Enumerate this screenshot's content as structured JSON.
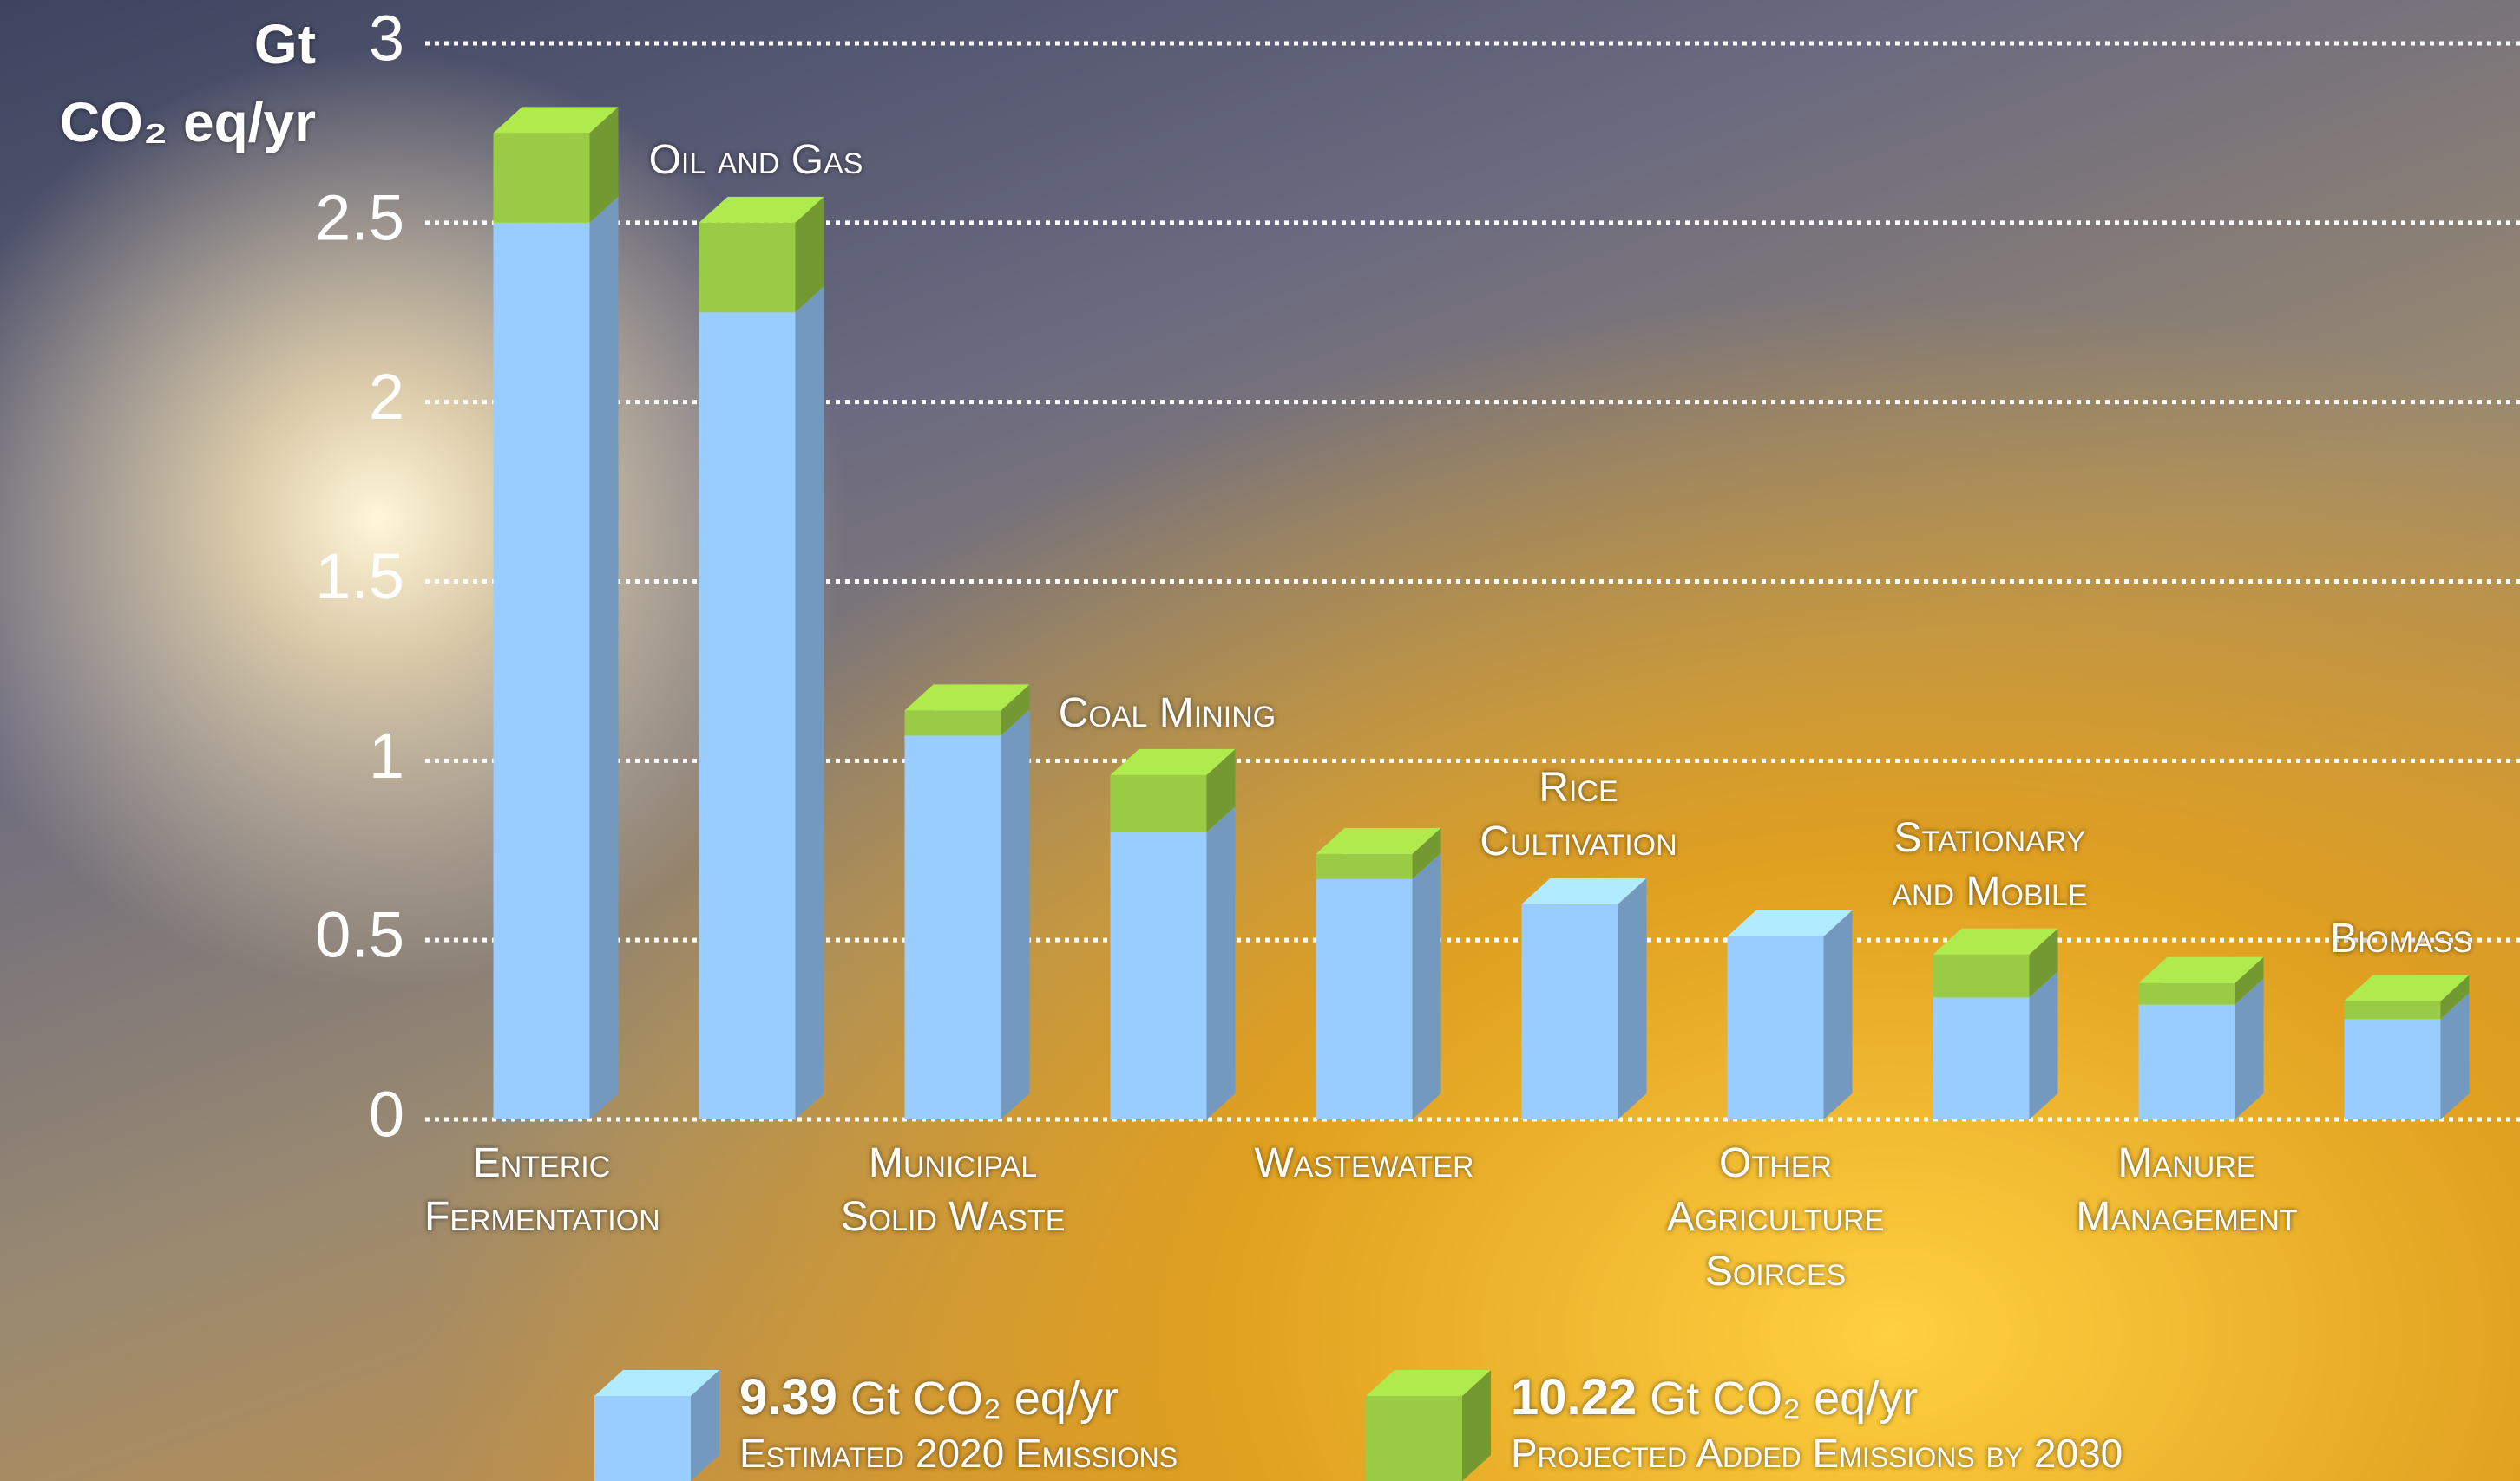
{
  "chart_data": {
    "type": "bar",
    "stacked": true,
    "y_axis_label": [
      "Gt",
      "CO₂ eq/yr"
    ],
    "categories": [
      "Enteric Fermentation",
      "Oil and Gas",
      "Municipal Solid Waste",
      "Coal Mining",
      "Wastewater",
      "Rice Cultivation",
      "Other Agriculture Soirces",
      "Stationary and Mobile",
      "Manure Management",
      "Biomass"
    ],
    "series": [
      {
        "name": "Estimated 2020 Emissions",
        "total": 9.39,
        "unit": "Gt CO₂ eq/yr",
        "color": "#99ccff",
        "values": [
          2.5,
          2.25,
          1.07,
          0.8,
          0.67,
          0.6,
          0.51,
          0.34,
          0.32,
          0.28
        ]
      },
      {
        "name": "Projected Added Emissions by 2030",
        "total": 10.22,
        "unit": "Gt CO₂ eq/yr",
        "color": "#99cc44",
        "values": [
          0.25,
          0.25,
          0.07,
          0.16,
          0.07,
          0,
          0,
          0.12,
          0.06,
          0.05
        ]
      }
    ],
    "ylim": [
      0,
      3
    ],
    "yticks": [
      0,
      {
        "value": 0.5,
        "label": "0.5"
      },
      1,
      {
        "value": 1.5,
        "label": "1.5"
      },
      2,
      {
        "value": 2.5,
        "label": "2.5"
      },
      3
    ],
    "grid": true
  }
}
